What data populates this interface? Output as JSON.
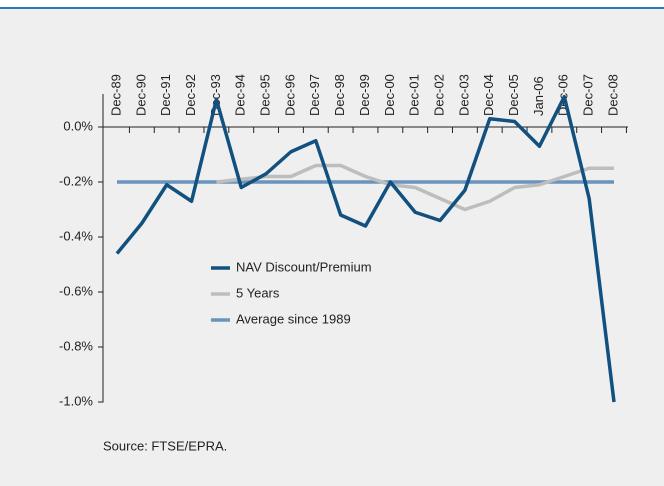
{
  "chart_data": {
    "type": "line",
    "categories": [
      "Dec-89",
      "Dec-90",
      "Dec-91",
      "Dec-92",
      "Dec-93",
      "Dec-94",
      "Dec-95",
      "Dec-96",
      "Dec-97",
      "Dec-98",
      "Dec-99",
      "Dec-00",
      "Dec-01",
      "Dec-02",
      "Dec-03",
      "Dec-04",
      "Dec-05",
      "Jan-06",
      "Dec-06",
      "Dec-07",
      "Dec-08"
    ],
    "series": [
      {
        "name": "NAV Discount/Premium",
        "color": "#11507f",
        "values": [
          -0.46,
          -0.35,
          -0.21,
          -0.27,
          0.1,
          -0.22,
          -0.17,
          -0.09,
          -0.05,
          -0.32,
          -0.36,
          -0.2,
          -0.31,
          -0.34,
          -0.23,
          0.03,
          0.02,
          -0.07,
          0.11,
          -0.26,
          -1.0
        ]
      },
      {
        "name": "5 Years",
        "color": "#bdbdbd",
        "values": [
          null,
          null,
          null,
          null,
          -0.2,
          -0.19,
          -0.18,
          -0.18,
          -0.14,
          -0.14,
          -0.18,
          -0.21,
          -0.22,
          -0.26,
          -0.3,
          -0.27,
          -0.22,
          -0.21,
          -0.18,
          -0.15,
          -0.15
        ]
      },
      {
        "name": "Average since 1989",
        "color": "#6a93bd",
        "values": [
          -0.2,
          -0.2,
          -0.2,
          -0.2,
          -0.2,
          -0.2,
          -0.2,
          -0.2,
          -0.2,
          -0.2,
          -0.2,
          -0.2,
          -0.2,
          -0.2,
          -0.2,
          -0.2,
          -0.2,
          -0.2,
          -0.2,
          -0.2,
          -0.2
        ]
      }
    ],
    "ylim": [
      -1.02,
      0.12
    ],
    "yticks": [
      {
        "value": 0,
        "label": "0.0%"
      },
      {
        "value": -0.2,
        "label": "-0.2%"
      },
      {
        "value": -0.4,
        "label": "-0.4%"
      },
      {
        "value": -0.6,
        "label": "-0.6%"
      },
      {
        "value": -0.8,
        "label": "-0.8%"
      },
      {
        "value": -1.0,
        "label": "-1.0%"
      }
    ],
    "source": "Source: FTSE/EPRA."
  }
}
